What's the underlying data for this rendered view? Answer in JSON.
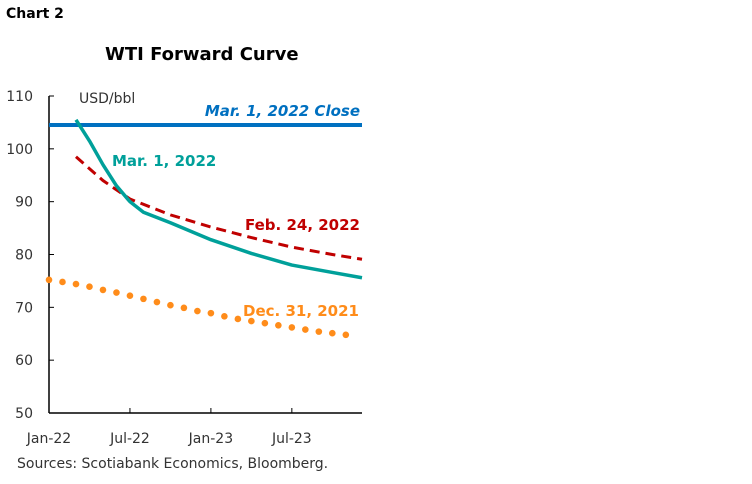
{
  "chart_label": "Chart 2",
  "source": "Sources: Scotiabank Economics, Bloomberg.",
  "chart_data": {
    "type": "line",
    "title": "WTI Forward Curve",
    "ylabel": "USD/bbl",
    "xlabel": "",
    "ylim": [
      50,
      110
    ],
    "yticks": [
      50,
      60,
      70,
      80,
      90,
      100,
      110
    ],
    "xlim_months_from_jan22": [
      0,
      23.2
    ],
    "xticks": [
      {
        "label": "Jan-22",
        "month": 0
      },
      {
        "label": "Jul-22",
        "month": 6
      },
      {
        "label": "Jan-23",
        "month": 12
      },
      {
        "label": "Jul-23",
        "month": 18
      }
    ],
    "series": [
      {
        "name": "Mar. 1, 2022 Close",
        "style": "solid-thick",
        "color": "#0070c0",
        "value": 104.5
      },
      {
        "name": "Mar. 1, 2022",
        "style": "solid",
        "color": "#00a09a",
        "months": [
          2,
          3,
          4,
          5,
          6,
          7,
          9,
          12,
          15,
          18,
          21,
          23.2
        ],
        "values": [
          105.5,
          101.5,
          97,
          93,
          90,
          88,
          86,
          82.8,
          80.2,
          78,
          76.6,
          75.6
        ]
      },
      {
        "name": "Feb. 24, 2022",
        "style": "dashed",
        "color": "#c00000",
        "months": [
          2,
          4,
          6,
          9,
          12,
          15,
          18,
          21,
          23.2
        ],
        "values": [
          98.5,
          94,
          90.5,
          87.5,
          85.2,
          83.2,
          81.4,
          80,
          79.1
        ]
      },
      {
        "name": "Dec. 31, 2021",
        "style": "dotted",
        "color": "#ff8c1a",
        "months": [
          0,
          1,
          2,
          3,
          4,
          5,
          6,
          7,
          8,
          9,
          10,
          11,
          12,
          13,
          14,
          15,
          16,
          17,
          18,
          19,
          20,
          21,
          22
        ],
        "values": [
          75.2,
          74.8,
          74.4,
          73.9,
          73.3,
          72.8,
          72.2,
          71.6,
          71.0,
          70.4,
          69.9,
          69.3,
          68.9,
          68.3,
          67.8,
          67.4,
          67.0,
          66.6,
          66.2,
          65.8,
          65.4,
          65.1,
          64.8
        ]
      }
    ]
  }
}
